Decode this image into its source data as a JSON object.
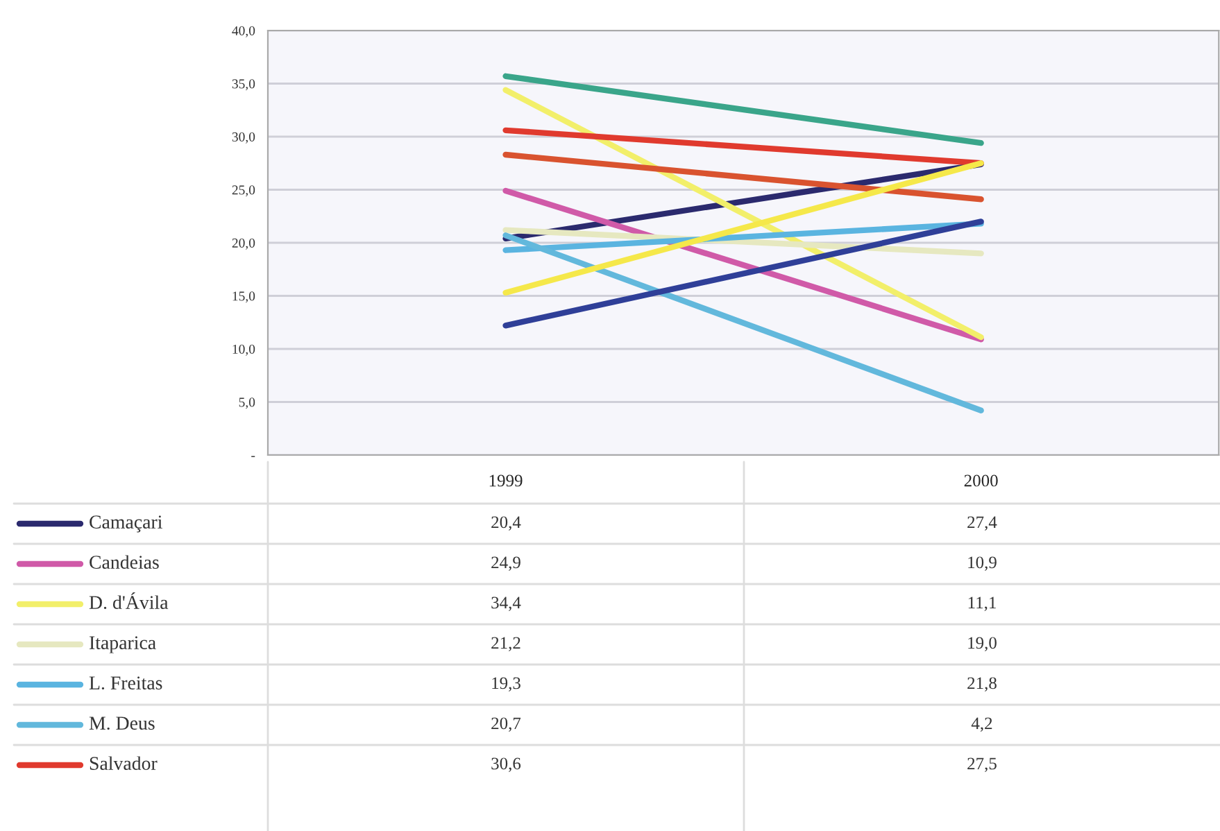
{
  "chart_data": {
    "type": "line",
    "categories": [
      "1999",
      "2000"
    ],
    "series": [
      {
        "name": "Camaçari",
        "color": "#2b2a6e",
        "values": [
          20.4,
          27.4
        ],
        "value_labels": [
          "20,4",
          "27,4"
        ]
      },
      {
        "name": "Candeias",
        "color": "#d05aa8",
        "values": [
          24.9,
          10.9
        ],
        "value_labels": [
          "24,9",
          "10,9"
        ]
      },
      {
        "name": "D. d'Ávila",
        "color": "#f2ef6a",
        "values": [
          34.4,
          11.1
        ],
        "value_labels": [
          "34,4",
          "11,1"
        ]
      },
      {
        "name": "Itaparica",
        "color": "#e6e8c0",
        "values": [
          21.2,
          19.0
        ],
        "value_labels": [
          "21,2",
          "19,0"
        ]
      },
      {
        "name": "L. Freitas",
        "color": "#5ab4e0",
        "values": [
          19.3,
          21.8
        ],
        "value_labels": [
          "19,3",
          "21,8"
        ]
      },
      {
        "name": "M. Deus",
        "color": "#62b8dc",
        "values": [
          20.7,
          4.2
        ],
        "value_labels": [
          "20,7",
          "4,2"
        ]
      },
      {
        "name": "Salvador",
        "color": "#e03a2e",
        "values": [
          30.6,
          27.5
        ],
        "value_labels": [
          "30,6",
          "27,5"
        ]
      },
      {
        "color": "#3aa58a",
        "values": [
          35.7,
          29.4
        ]
      },
      {
        "color": "#d9532f",
        "values": [
          28.3,
          24.1
        ]
      },
      {
        "color": "#f5e84a",
        "values": [
          15.3,
          27.5
        ]
      },
      {
        "color": "#2f3f98",
        "values": [
          12.2,
          22.0
        ]
      }
    ],
    "ylim": [
      0,
      40
    ],
    "yticks": [
      {
        "value": 0,
        "label": "-"
      },
      {
        "value": 5,
        "label": "5,0"
      },
      {
        "value": 10,
        "label": "10,0"
      },
      {
        "value": 15,
        "label": "15,0"
      },
      {
        "value": 20,
        "label": "20,0"
      },
      {
        "value": 25,
        "label": "25,0"
      },
      {
        "value": 30,
        "label": "30,0"
      },
      {
        "value": 35,
        "label": "35,0"
      },
      {
        "value": 40,
        "label": "40,0"
      }
    ],
    "grid": "y",
    "legend": "bottom"
  }
}
